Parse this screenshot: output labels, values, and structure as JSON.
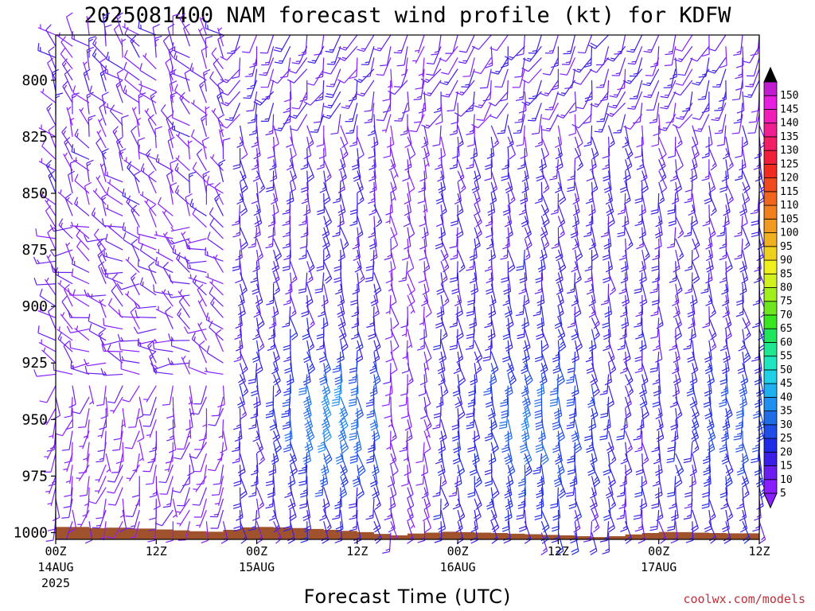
{
  "chart_data": {
    "type": "wind-barb-time-height",
    "title": "2025081400 NAM forecast wind profile (kt) for KDFW",
    "xlabel": "Forecast Time (UTC)",
    "credit": "coolwx.com/models",
    "y_axis": {
      "quantity": "pressure (hPa)",
      "range": [
        1003,
        780
      ],
      "ticks": [
        800,
        825,
        850,
        875,
        900,
        925,
        950,
        975,
        1000
      ]
    },
    "x_axis": {
      "range_hours": [
        0,
        84
      ],
      "ticks": [
        {
          "hour": 0,
          "line1": "00Z",
          "line2": "14AUG",
          "line3": "2025"
        },
        {
          "hour": 12,
          "line1": "12Z",
          "line2": "",
          "line3": ""
        },
        {
          "hour": 24,
          "line1": "00Z",
          "line2": "15AUG",
          "line3": ""
        },
        {
          "hour": 36,
          "line1": "12Z",
          "line2": "",
          "line3": ""
        },
        {
          "hour": 48,
          "line1": "00Z",
          "line2": "16AUG",
          "line3": ""
        },
        {
          "hour": 60,
          "line1": "12Z",
          "line2": "",
          "line3": ""
        },
        {
          "hour": 72,
          "line1": "00Z",
          "line2": "17AUG",
          "line3": ""
        },
        {
          "hour": 84,
          "line1": "12Z",
          "line2": "",
          "line3": ""
        }
      ]
    },
    "colorbar": {
      "labels": [
        "5",
        "10",
        "15",
        "20",
        "25",
        "30",
        "35",
        "40",
        "45",
        "50",
        "55",
        "60",
        "65",
        "70",
        "75",
        "80",
        "85",
        "90",
        "95",
        "100",
        "105",
        "110",
        "115",
        "120",
        "125",
        "130",
        "135",
        "140",
        "145",
        "150"
      ],
      "colors": [
        "#8a1fff",
        "#6a1ff0",
        "#3a1fe6",
        "#1f2be6",
        "#1f4de6",
        "#1f6ee6",
        "#1f90f0",
        "#1fb0f0",
        "#1fd0e6",
        "#1fe6c0",
        "#1fe690",
        "#1fe65a",
        "#3ae61f",
        "#6ee61f",
        "#a0f01f",
        "#d0f01f",
        "#f0f01f",
        "#f0d01f",
        "#f0b01f",
        "#f09a1f",
        "#f0801f",
        "#f0661f",
        "#f04a1f",
        "#f02b1f",
        "#f01f3a",
        "#f01f66",
        "#f01f90",
        "#f01fb8",
        "#e61fe0",
        "#c01fd0"
      ]
    },
    "terrain": {
      "color": "#a0522d",
      "surface_pressure": [
        [
          0,
          997.5
        ],
        [
          4,
          998
        ],
        [
          6,
          997.8
        ],
        [
          9,
          998.2
        ],
        [
          12,
          998.6
        ],
        [
          14,
          999
        ],
        [
          16,
          999.4
        ],
        [
          18,
          999.6
        ],
        [
          20,
          998.8
        ],
        [
          22,
          997.7
        ],
        [
          24,
          997.5
        ],
        [
          26,
          997.7
        ],
        [
          28,
          998
        ],
        [
          30,
          998.4
        ],
        [
          32,
          998.8
        ],
        [
          34,
          999.2
        ],
        [
          36,
          999.8
        ],
        [
          38,
          1000.6
        ],
        [
          40,
          1001.2
        ],
        [
          42,
          1000.4
        ],
        [
          44,
          1000
        ],
        [
          46,
          999.6
        ],
        [
          48,
          999.8
        ],
        [
          50,
          1000
        ],
        [
          52,
          1000.2
        ],
        [
          54,
          1000.5
        ],
        [
          56,
          1000.7
        ],
        [
          58,
          1001
        ],
        [
          60,
          1001.2
        ],
        [
          62,
          1001.6
        ],
        [
          64,
          1002
        ],
        [
          66,
          1001.6
        ],
        [
          68,
          1000.8
        ],
        [
          70,
          1000.2
        ],
        [
          72,
          999.7
        ],
        [
          74,
          999.8
        ],
        [
          76,
          1000
        ],
        [
          78,
          1000.2
        ],
        [
          80,
          1000.3
        ],
        [
          82,
          1000.3
        ],
        [
          84,
          1000.4
        ]
      ]
    },
    "wind_profile": {
      "interval_hours": 2,
      "pressure_levels": [
        780,
        785,
        790,
        795,
        800,
        805,
        810,
        815,
        820,
        825,
        830,
        835,
        840,
        845,
        850,
        855,
        860,
        865,
        870,
        875,
        880,
        885,
        890,
        895,
        900,
        905,
        910,
        915,
        920,
        925,
        930,
        935,
        940,
        945,
        950,
        955,
        960,
        965,
        970,
        975,
        980,
        985,
        990,
        995,
        1000
      ],
      "period1_hours": [
        0,
        20
      ],
      "period1_dir_speed": "light and variable, 5-15 kt; north to northwesterly aloft, southerly in lowest levels",
      "period2_hours": [
        22,
        84
      ],
      "period2_dir_speed": "southerly 15-25 kt, locally 30-40 kt near 925-950 hPa at 30-36h and 54-60h; weaker aloft"
    }
  }
}
